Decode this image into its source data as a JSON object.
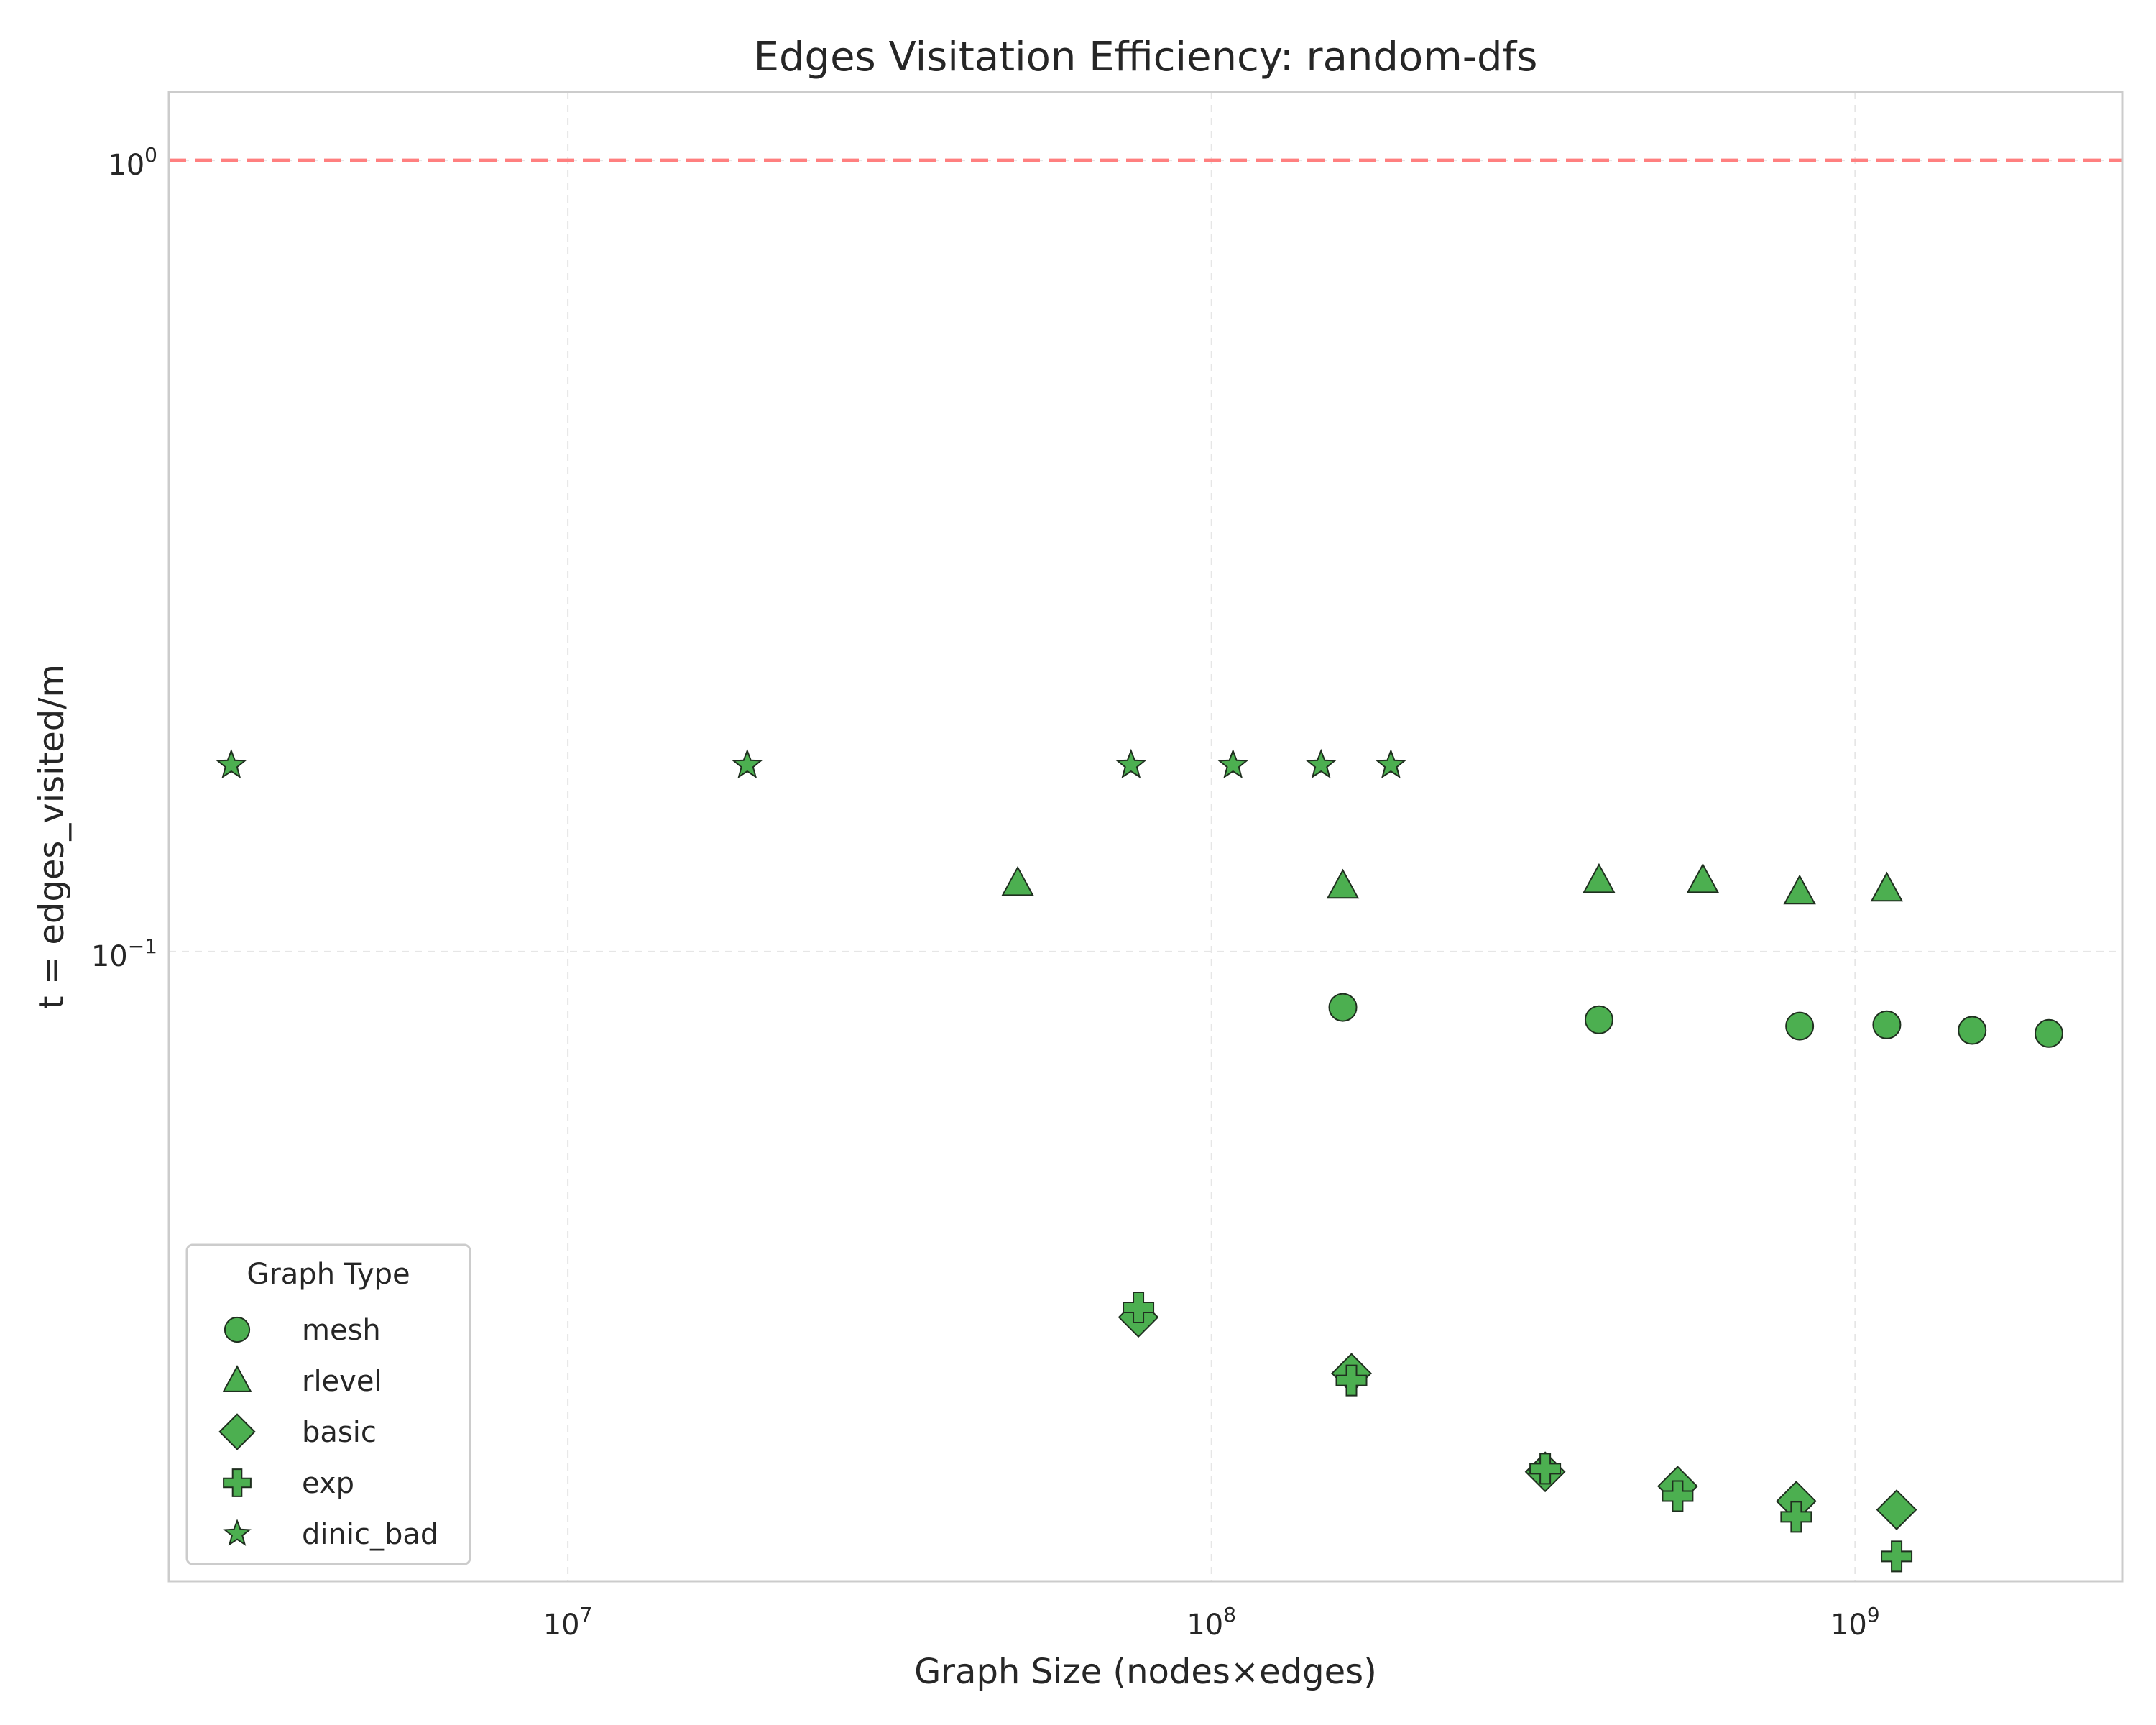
{
  "chart_data": {
    "type": "scatter",
    "title": "Edges Visitation Efficiency: random-dfs",
    "xlabel": "Graph Size (nodes×edges)",
    "ylabel": "t = edges_visited/m",
    "xscale": "log",
    "yscale": "log",
    "xlim": [
      2400000,
      2600000000
    ],
    "ylim": [
      0.016,
      1.22
    ],
    "xticks": [
      {
        "value": 10000000,
        "base": "10",
        "exp": "7"
      },
      {
        "value": 100000000,
        "base": "10",
        "exp": "8"
      },
      {
        "value": 1000000000,
        "base": "10",
        "exp": "9"
      }
    ],
    "yticks": [
      {
        "value": 0.1,
        "base": "10",
        "exp": "−1"
      },
      {
        "value": 1,
        "base": "10",
        "exp": "0"
      }
    ],
    "grid": true,
    "reference_line": {
      "y": 1.0,
      "color": "#ff7f7f",
      "style": "dashed"
    },
    "marker_color": "#4caf50",
    "marker_edge": "#1f2f1f",
    "legend": {
      "title": "Graph Type",
      "placement": "lower-left"
    },
    "series": [
      {
        "name": "mesh",
        "marker": "circle",
        "points": [
          [
            160000000,
            0.085
          ],
          [
            400000000,
            0.082
          ],
          [
            820000000,
            0.0805
          ],
          [
            1120000000,
            0.0808
          ],
          [
            1520000000,
            0.0795
          ],
          [
            2000000000,
            0.0788
          ]
        ]
      },
      {
        "name": "rlevel",
        "marker": "triangle",
        "points": [
          [
            50000000,
            0.122
          ],
          [
            160000000,
            0.121
          ],
          [
            400000000,
            0.123
          ],
          [
            580000000,
            0.123
          ],
          [
            820000000,
            0.119
          ],
          [
            1120000000,
            0.12
          ]
        ]
      },
      {
        "name": "basic",
        "marker": "diamond",
        "points": [
          [
            77000000,
            0.0345
          ],
          [
            165000000,
            0.0293
          ],
          [
            330000000,
            0.022
          ],
          [
            530000000,
            0.0211
          ],
          [
            810000000,
            0.0202
          ],
          [
            1160000000,
            0.0197
          ]
        ]
      },
      {
        "name": "exp",
        "marker": "plus",
        "points": [
          [
            77000000,
            0.0355
          ],
          [
            165000000,
            0.0287
          ],
          [
            330000000,
            0.0222
          ],
          [
            530000000,
            0.0205
          ],
          [
            810000000,
            0.0193
          ],
          [
            1160000000,
            0.0172
          ]
        ]
      },
      {
        "name": "dinic_bad",
        "marker": "star",
        "points": [
          [
            3000000,
            0.172
          ],
          [
            19000000,
            0.172
          ],
          [
            75000000,
            0.172
          ],
          [
            108000000,
            0.172
          ],
          [
            148000000,
            0.172
          ],
          [
            190000000,
            0.172
          ]
        ]
      }
    ]
  }
}
